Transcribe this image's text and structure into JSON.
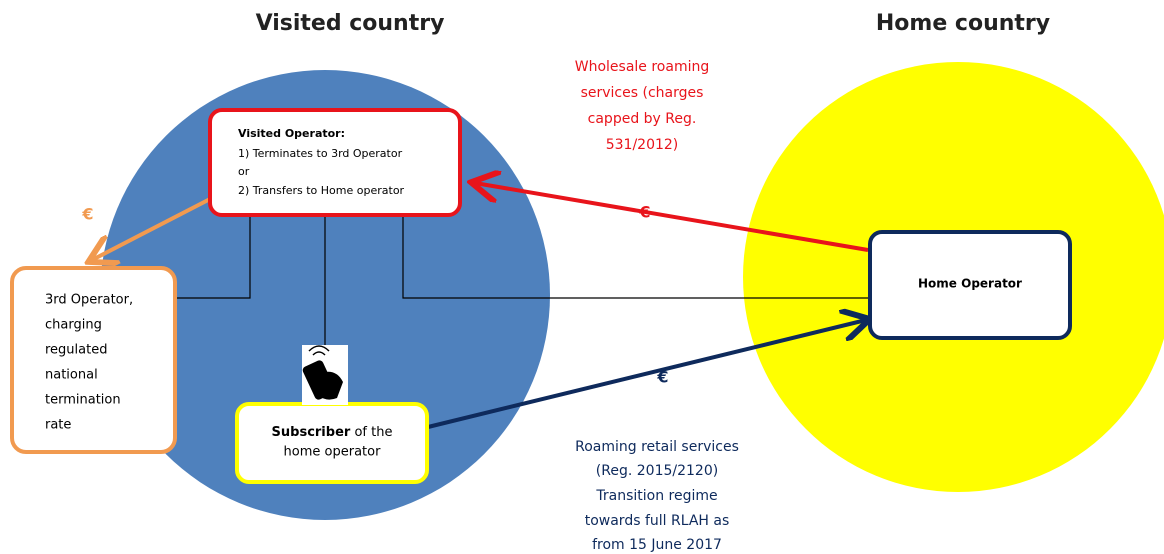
{
  "headings": {
    "visited": "Visited country",
    "home": "Home country"
  },
  "visited_operator": {
    "title": "Visited Operator:",
    "lines": [
      "1) Terminates to 3rd Operator",
      "or",
      "2) Transfers to Home operator"
    ]
  },
  "third_operator": {
    "lines": [
      "3rd Operator,",
      "charging",
      "regulated",
      "national",
      "termination",
      "rate"
    ]
  },
  "subscriber": {
    "bold": "Subscriber",
    "rest": " of the",
    "line2": "home operator"
  },
  "home_operator": {
    "label": "Home Operator"
  },
  "flows": {
    "termination_charge": "€",
    "wholesale_charge": "€",
    "retail_charge": "€"
  },
  "wholesale_note": {
    "lines": [
      "Wholesale roaming",
      "services (charges",
      "capped by Reg.",
      "531/2012)"
    ]
  },
  "retail_note": {
    "lines": [
      "Roaming retail services",
      "(Reg. 2015/2120)",
      "Transition regime",
      "towards full RLAH as",
      "from 15 June 2017"
    ]
  }
}
